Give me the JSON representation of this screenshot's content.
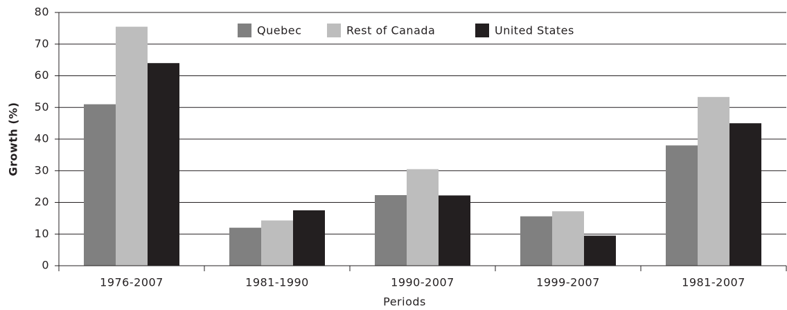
{
  "chart_data": {
    "type": "bar",
    "categories": [
      "1976-2007",
      "1981-1990",
      "1990-2007",
      "1999-2007",
      "1981-2007"
    ],
    "series": [
      {
        "name": "Quebec",
        "color": "#808080",
        "values": [
          51,
          12,
          22.3,
          15.6,
          38
        ]
      },
      {
        "name": "Rest of Canada",
        "color": "#bdbdbd",
        "values": [
          75.5,
          14.3,
          30.5,
          17.2,
          53.3
        ]
      },
      {
        "name": "United States",
        "color": "#231f20",
        "values": [
          64,
          17.5,
          22.2,
          9.5,
          45
        ]
      }
    ],
    "xlabel": "Periods",
    "ylabel": "Growth (%)",
    "ylim": [
      0,
      80
    ],
    "yticks": [
      0,
      10,
      20,
      30,
      40,
      50,
      60,
      70,
      80
    ],
    "grid": true,
    "legend": "top"
  }
}
